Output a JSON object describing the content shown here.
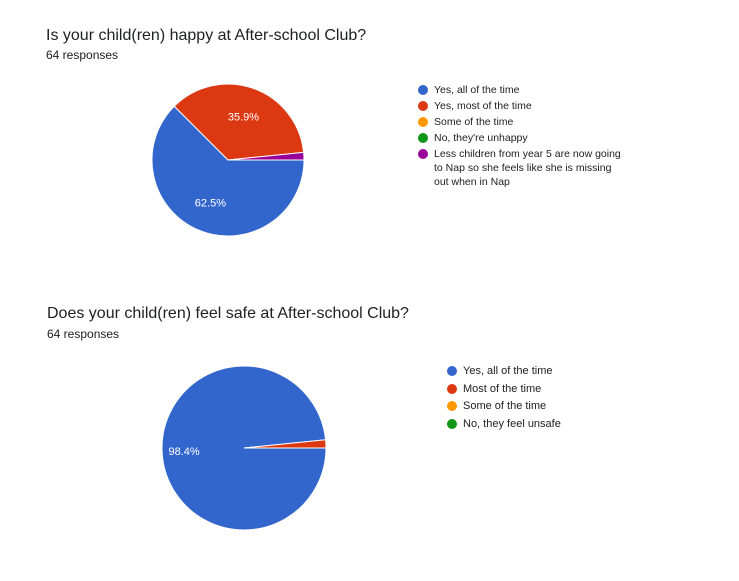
{
  "charts": [
    {
      "title": "Is your child(ren) happy at After-school Club?",
      "responses": "64 responses"
    },
    {
      "title": "Does your child(ren) feel safe at After-school Club?",
      "responses": "64 responses"
    }
  ],
  "chart_data": [
    {
      "type": "pie",
      "title": "Is your child(ren) happy at After-school Club?",
      "categories": [
        "Yes, all of the time",
        "Yes, most of the time",
        "Some of the time",
        "No, they're unhappy",
        "Less children from year 5 are now going to Nap so she feels like she is missing out when in Nap"
      ],
      "values": [
        62.5,
        35.9,
        0,
        0,
        1.6
      ],
      "labels": [
        "62.5%",
        "35.9%",
        "",
        "",
        ""
      ],
      "colors": [
        "#3366cc",
        "#dc3912",
        "#ff9900",
        "#109618",
        "#990099"
      ],
      "legend": "right"
    },
    {
      "type": "pie",
      "title": "Does your child(ren) feel safe at After-school Club?",
      "categories": [
        "Yes, all of the time",
        "Most of the time",
        "Some of the time",
        "No, they feel unsafe"
      ],
      "values": [
        98.4,
        1.6,
        0,
        0
      ],
      "labels": [
        "98.4%",
        "",
        "",
        ""
      ],
      "colors": [
        "#3366cc",
        "#dc3912",
        "#ff9900",
        "#109618"
      ],
      "legend": "right"
    }
  ]
}
